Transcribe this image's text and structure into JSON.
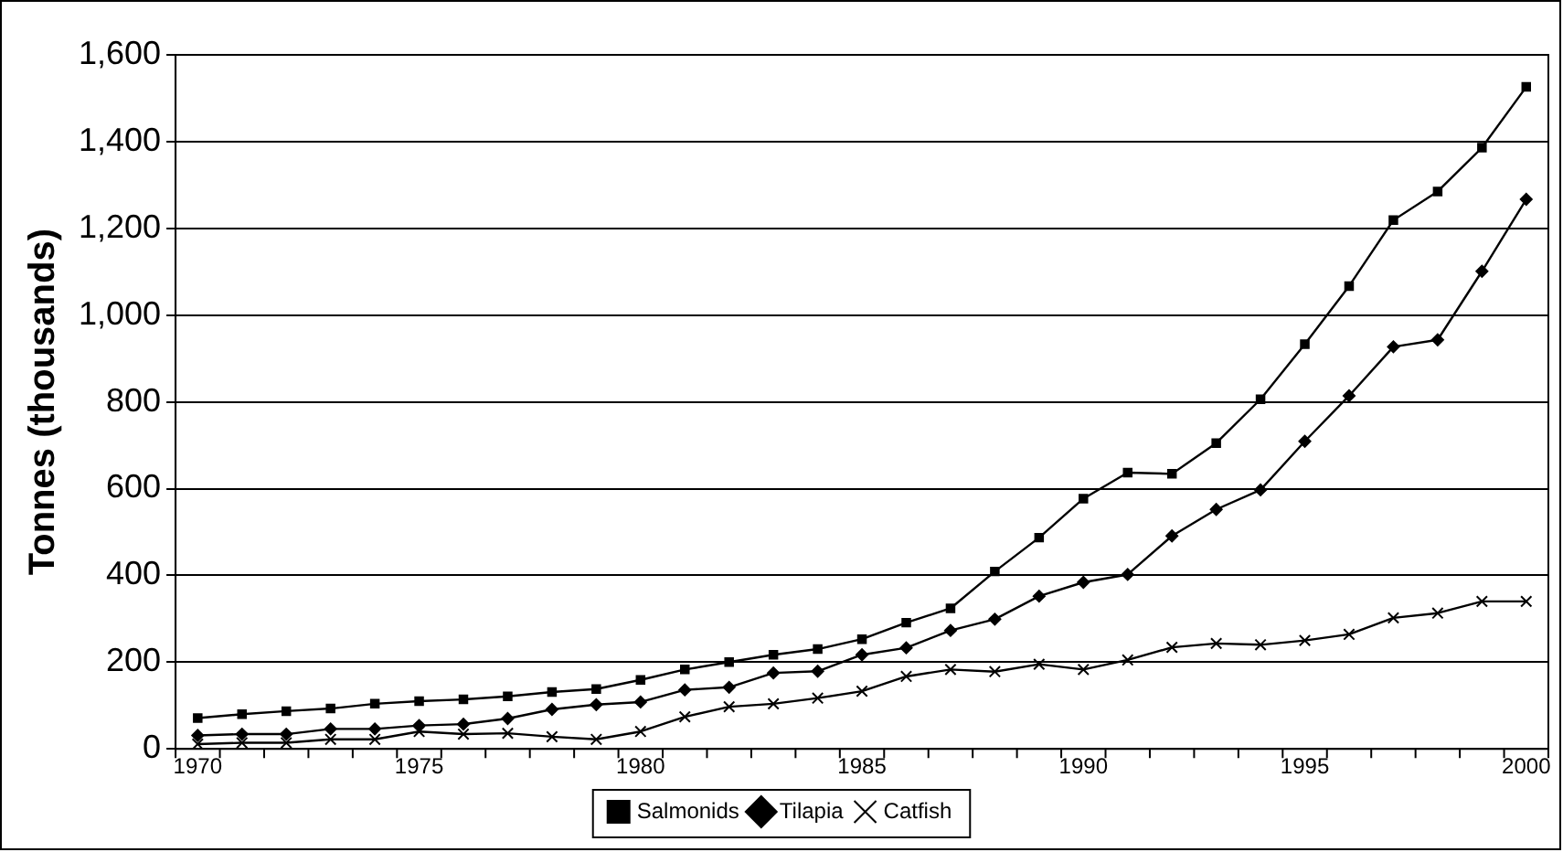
{
  "chart_data": {
    "type": "line",
    "ylabel": "Tonnes (thousands)",
    "x": [
      1970,
      1971,
      1972,
      1973,
      1974,
      1975,
      1976,
      1977,
      1978,
      1979,
      1980,
      1981,
      1982,
      1983,
      1984,
      1985,
      1986,
      1987,
      1988,
      1989,
      1990,
      1991,
      1992,
      1993,
      1994,
      1995,
      1996,
      1997,
      1998,
      1999,
      2000
    ],
    "xlim": [
      1969.5,
      2000.5
    ],
    "xticks": [
      1970,
      1975,
      1980,
      1985,
      1990,
      1995,
      2000
    ],
    "ylim": [
      0,
      1600
    ],
    "yticks": [
      0,
      200,
      400,
      600,
      800,
      {
        "value": 1000,
        "label": "1,000"
      },
      {
        "value": 1200,
        "label": "1,200"
      },
      {
        "value": 1400,
        "label": "1,400"
      },
      {
        "value": 1600,
        "label": "1,600"
      }
    ],
    "grid": "y",
    "legend": "bottom",
    "line_style": "solid",
    "series": [
      {
        "name": "Salmonids",
        "color": "#000000",
        "marker": "square",
        "values": [
          71,
          80,
          87,
          93,
          104,
          110,
          114,
          121,
          131,
          138,
          159,
          183,
          200,
          217,
          230,
          253,
          291,
          324,
          409,
          487,
          577,
          637,
          634,
          705,
          806,
          933,
          1067,
          1219,
          1285,
          1386,
          1526
        ]
      },
      {
        "name": "Tilapia",
        "color": "#000000",
        "marker": "diamond",
        "values": [
          31,
          34,
          34,
          46,
          46,
          54,
          57,
          70,
          91,
          102,
          108,
          136,
          142,
          175,
          179,
          217,
          233,
          273,
          299,
          352,
          384,
          402,
          491,
          552,
          597,
          709,
          814,
          927,
          943,
          1101,
          1267
        ]
      },
      {
        "name": "Catfish",
        "color": "#000000",
        "marker": "cross",
        "values": [
          11,
          14,
          14,
          22,
          22,
          40,
          34,
          36,
          28,
          22,
          40,
          74,
          97,
          104,
          117,
          133,
          167,
          183,
          178,
          195,
          183,
          205,
          234,
          243,
          240,
          250,
          264,
          302,
          313,
          340,
          340
        ]
      }
    ]
  }
}
